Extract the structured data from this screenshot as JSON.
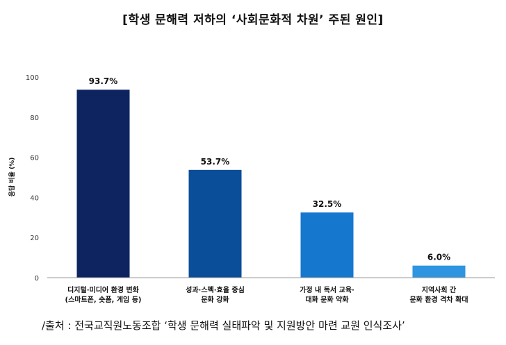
{
  "title": "[학생 문해력 저하의 ‘사회문화적 차원’ 주된 원인]",
  "source": "/출처 : 전국교직원노동조합 ‘학생 문해력 실태파악 및 지원방안 마련 교원 인식조사’",
  "chart_data": {
    "type": "bar",
    "categories": [
      [
        "디지털·미디어 환경 변화",
        "(스마트폰, 숏폼, 게임 등)"
      ],
      [
        "성과·스펙·효율 중심",
        "문화 강화"
      ],
      [
        "가정 내 독서 교육·",
        "대화 문화 약화"
      ],
      [
        "지역사회 간",
        "문화 환경 격차 확대"
      ]
    ],
    "values": [
      93.7,
      53.7,
      32.5,
      6.0
    ],
    "data_labels": [
      "93.7%",
      "53.7%",
      "32.5%",
      "6.0%"
    ],
    "colors": [
      "#0d2461",
      "#0a4d99",
      "#1677cf",
      "#2f95e0"
    ],
    "ylabel": "응답 비율 (%)",
    "xlabel": "",
    "ylim": [
      0,
      100
    ],
    "yticks": [
      0,
      20,
      40,
      60,
      80,
      100
    ],
    "grid": false,
    "legend": "none"
  }
}
